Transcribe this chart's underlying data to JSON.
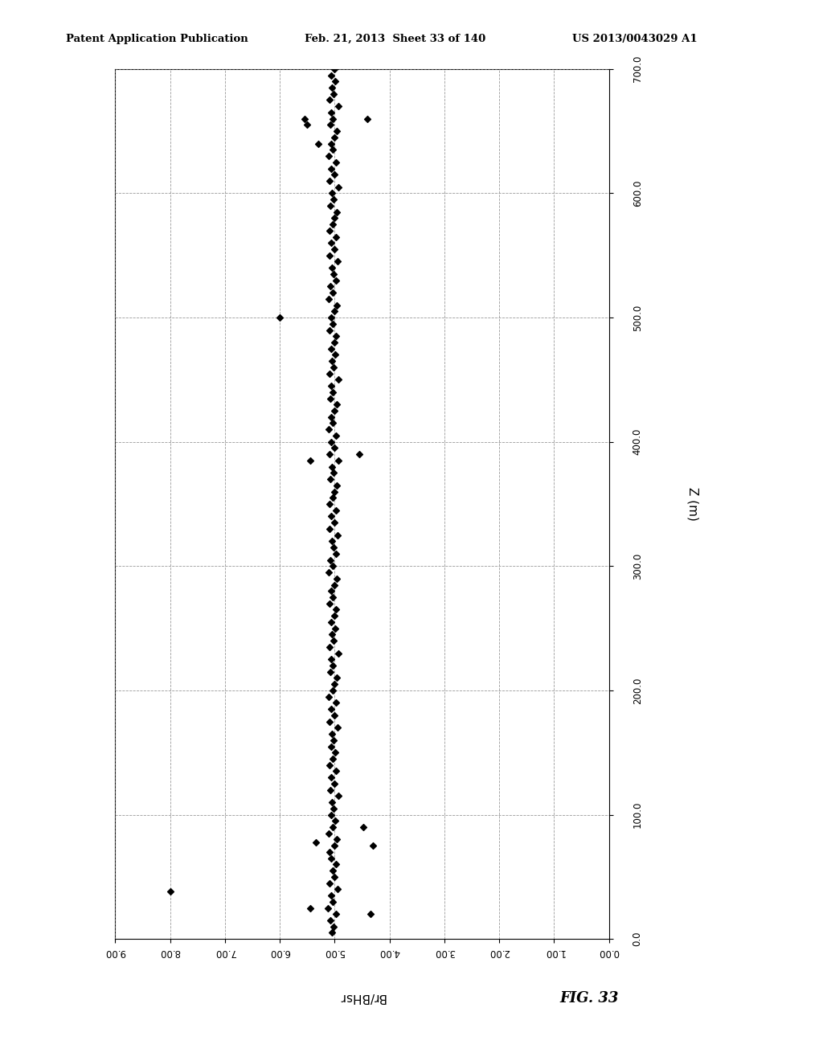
{
  "header_left": "Patent Application Publication",
  "header_mid": "Feb. 21, 2013  Sheet 33 of 140",
  "header_right": "US 2013/0043029 A1",
  "fig_label": "FIG. 33",
  "xlabel": "Br/BHsr",
  "ylabel": "Z (m)",
  "xlim": [
    0.0,
    9.0
  ],
  "ylim": [
    0.0,
    700.0
  ],
  "xticks": [
    0.0,
    1.0,
    2.0,
    3.0,
    4.0,
    5.0,
    6.0,
    7.0,
    8.0,
    9.0
  ],
  "yticks": [
    0.0,
    100.0,
    200.0,
    300.0,
    400.0,
    500.0,
    600.0,
    700.0
  ],
  "background_color": "#ffffff",
  "marker_color": "#000000",
  "marker_size": 16,
  "data_x": [
    5.05,
    5.02,
    5.08,
    4.98,
    5.12,
    5.03,
    5.07,
    4.95,
    5.1,
    5.01,
    5.04,
    4.97,
    5.06,
    5.09,
    5.0,
    4.96,
    5.11,
    5.03,
    4.99,
    5.07,
    5.02,
    5.05,
    4.94,
    5.08,
    5.01,
    5.06,
    4.97,
    5.1,
    5.03,
    4.99,
    5.07,
    5.02,
    5.05,
    4.95,
    5.09,
    5.01,
    5.06,
    4.98,
    5.11,
    5.04,
    5.0,
    4.96,
    5.08,
    5.03,
    5.07,
    4.94,
    5.1,
    5.02,
    5.05,
    4.99,
    5.06,
    5.01,
    4.97,
    5.09,
    5.03,
    5.07,
    5.0,
    4.96,
    5.11,
    5.04,
    5.08,
    4.98,
    5.02,
    5.05,
    4.95,
    5.09,
    5.01,
    5.06,
    4.97,
    5.1,
    5.03,
    5.0,
    4.96,
    5.08,
    5.02,
    5.05,
    4.94,
    5.09,
    5.01,
    5.06,
    4.98,
    5.11,
    5.04,
    5.07,
    5.0,
    4.96,
    5.08,
    5.03,
    5.07,
    4.94,
    5.1,
    5.02,
    5.05,
    4.99,
    5.06,
    5.01,
    4.97,
    5.09,
    5.03,
    5.07,
    5.0,
    4.96,
    5.11,
    5.04,
    5.08,
    4.98,
    5.02,
    5.05,
    4.95,
    5.09,
    5.01,
    5.06,
    4.97,
    5.1,
    5.03,
    5.0,
    4.96,
    5.08,
    5.02,
    5.05,
    4.94,
    5.09,
    5.01,
    5.06,
    4.98,
    5.11,
    5.04,
    5.07,
    5.0,
    4.96,
    5.08,
    5.03,
    5.07,
    4.94,
    5.1,
    5.02,
    5.05,
    4.99,
    5.06,
    5.01,
    5.5,
    5.55,
    4.4,
    5.3,
    4.3,
    5.35,
    4.48,
    8.0,
    6.0,
    5.45,
    4.55,
    4.35,
    5.45
  ],
  "data_y": [
    5,
    10,
    15,
    20,
    25,
    30,
    35,
    40,
    45,
    50,
    55,
    60,
    65,
    70,
    75,
    80,
    85,
    90,
    95,
    100,
    105,
    110,
    115,
    120,
    125,
    130,
    135,
    140,
    145,
    150,
    155,
    160,
    165,
    170,
    175,
    180,
    185,
    190,
    195,
    200,
    205,
    210,
    215,
    220,
    225,
    230,
    235,
    240,
    245,
    250,
    255,
    260,
    265,
    270,
    275,
    280,
    285,
    290,
    295,
    300,
    305,
    310,
    315,
    320,
    325,
    330,
    335,
    340,
    345,
    350,
    355,
    360,
    365,
    370,
    375,
    380,
    385,
    390,
    395,
    400,
    405,
    410,
    415,
    420,
    425,
    430,
    435,
    440,
    445,
    450,
    455,
    460,
    465,
    470,
    475,
    480,
    485,
    490,
    495,
    500,
    505,
    510,
    515,
    520,
    525,
    530,
    535,
    540,
    545,
    550,
    555,
    560,
    565,
    570,
    575,
    580,
    585,
    590,
    595,
    600,
    605,
    610,
    615,
    620,
    625,
    630,
    635,
    640,
    645,
    650,
    655,
    660,
    665,
    670,
    675,
    680,
    685,
    690,
    695,
    700,
    655,
    660,
    660,
    640,
    75,
    78,
    90,
    38,
    500,
    385,
    390,
    20,
    25
  ]
}
